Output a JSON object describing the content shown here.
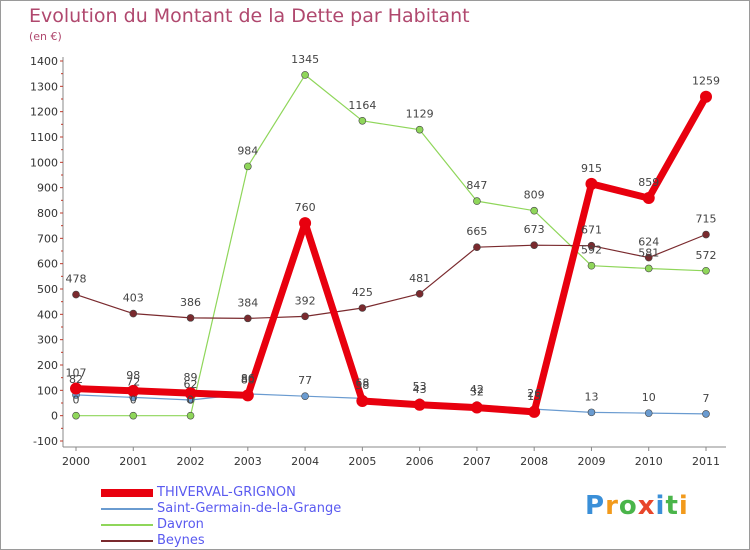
{
  "title": "Evolution du Montant de la Dette par Habitant",
  "subtitle": "(en €)",
  "logo": {
    "text": "Proxiti",
    "letters": [
      "P",
      "r",
      "o",
      "x",
      "i",
      "t",
      "i"
    ],
    "colors": [
      "#3a8fd8",
      "#f29a1c",
      "#4ab54a",
      "#e8462a",
      "#3a8fd8",
      "#4ab54a",
      "#f29a1c"
    ]
  },
  "chart_data": {
    "type": "line",
    "title": "Evolution du Montant de la Dette par Habitant",
    "subtitle": "(en €)",
    "x": [
      "2000",
      "2001",
      "2002",
      "2003",
      "2004",
      "2005",
      "2006",
      "2007",
      "2008",
      "2009",
      "2010",
      "2011"
    ],
    "ylim": [
      -100,
      1400
    ],
    "yticks": [
      -100,
      0,
      100,
      200,
      300,
      400,
      500,
      600,
      700,
      800,
      900,
      1000,
      1100,
      1200,
      1300,
      1400
    ],
    "grid": false,
    "legend_position": "bottom-left",
    "series": [
      {
        "name": "THIVERVAL-GRIGNON",
        "color": "#e8000e",
        "values": [
          107,
          98,
          89,
          80,
          760,
          58,
          43,
          32,
          15,
          915,
          859,
          1259
        ],
        "labels": [
          "107",
          "98",
          "89",
          "80",
          "760",
          "58",
          "43",
          "32",
          "15",
          "915",
          "859",
          "1259"
        ]
      },
      {
        "name": "Saint-Germain-de-la-Grange",
        "color": "#6a9bd0",
        "values": [
          82,
          72,
          62,
          86,
          77,
          68,
          53,
          42,
          26,
          13,
          10,
          7
        ],
        "labels": [
          "82",
          "72",
          "62",
          "86",
          "77",
          "68",
          "53",
          "42",
          "26",
          "13",
          "10",
          "7"
        ]
      },
      {
        "name": "Davron",
        "color": "#8fd65a",
        "values": [
          0,
          0,
          0,
          984,
          1345,
          1164,
          1129,
          847,
          809,
          592,
          581,
          572
        ],
        "labels": [
          "0",
          "0",
          "0",
          "984",
          "1345",
          "1164",
          "1129",
          "847",
          "809",
          "592",
          "581",
          "572"
        ]
      },
      {
        "name": "Beynes",
        "color": "#7a2a2e",
        "values": [
          478,
          403,
          386,
          384,
          392,
          425,
          481,
          665,
          673,
          671,
          624,
          715
        ],
        "labels": [
          "478",
          "403",
          "386",
          "384",
          "392",
          "425",
          "481",
          "665",
          "673",
          "671",
          "624",
          "715"
        ]
      }
    ]
  }
}
